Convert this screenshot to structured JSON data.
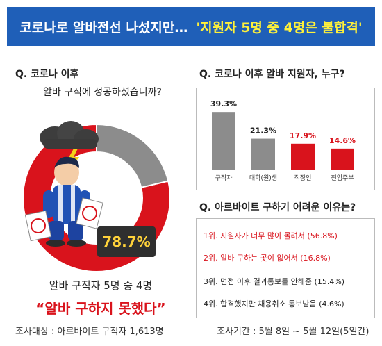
{
  "banner": {
    "title_white": "코로나로 알바전선 나섰지만…",
    "title_yellow": "'지원자 5명 중 4명은 불합격'"
  },
  "left": {
    "q_title": "Q. 코로나 이후",
    "q_sub": "알바 구직에 성공하셨습니까?",
    "callout": "78.7%",
    "caption_line1": "알바 구직자 5명 중 4명",
    "caption_line2": "“알바 구하지 못했다”"
  },
  "right_top": {
    "q_title": "Q. 코로나 이후 알바 지원자, 누구?"
  },
  "right_bottom": {
    "q_title": "Q. 아르바이트 구하기 어려운 이유는?",
    "reasons": [
      {
        "text": "1위. 지원자가 너무 많이 몰려서 (56.8%)",
        "color": "#d9131c"
      },
      {
        "text": "2위. 알바 구하는 곳이 없어서 (16.8%)",
        "color": "#d9131c"
      },
      {
        "text": "3위. 면접 이후 결과통보를 안해줌 (15.4%)",
        "color": "#222222"
      },
      {
        "text": "4위. 합격했지만 채용취소 통보받음 (4.6%)",
        "color": "#222222"
      }
    ]
  },
  "footer": {
    "left": "조사대상 : 아르바이트 구직자 1,613명",
    "right": "조사기간 : 5월 8일 ~ 5월 12일(5일간)"
  },
  "colors": {
    "red": "#d9131c",
    "gray": "#8c8c8c",
    "blue": "#1f5fb8",
    "yellow": "#fff13a"
  },
  "chart_data": [
    {
      "type": "pie",
      "slices": [
        {
          "value": 78.7,
          "color": "#d9131c"
        },
        {
          "value": 21.3,
          "color": "#8c8c8c"
        }
      ]
    },
    {
      "type": "bar",
      "categories": [
        "구직자",
        "대학(원)생",
        "직장인",
        "전업주부"
      ],
      "values": [
        39.3,
        21.3,
        17.9,
        14.6
      ],
      "value_labels": [
        "39.3%",
        "21.3%",
        "17.9%",
        "14.6%"
      ],
      "colors": [
        "#8c8c8c",
        "#8c8c8c",
        "#d9131c",
        "#d9131c"
      ],
      "label_colors": [
        "#222222",
        "#222222",
        "#d9131c",
        "#d9131c"
      ],
      "ylim": [
        0,
        45
      ]
    }
  ]
}
